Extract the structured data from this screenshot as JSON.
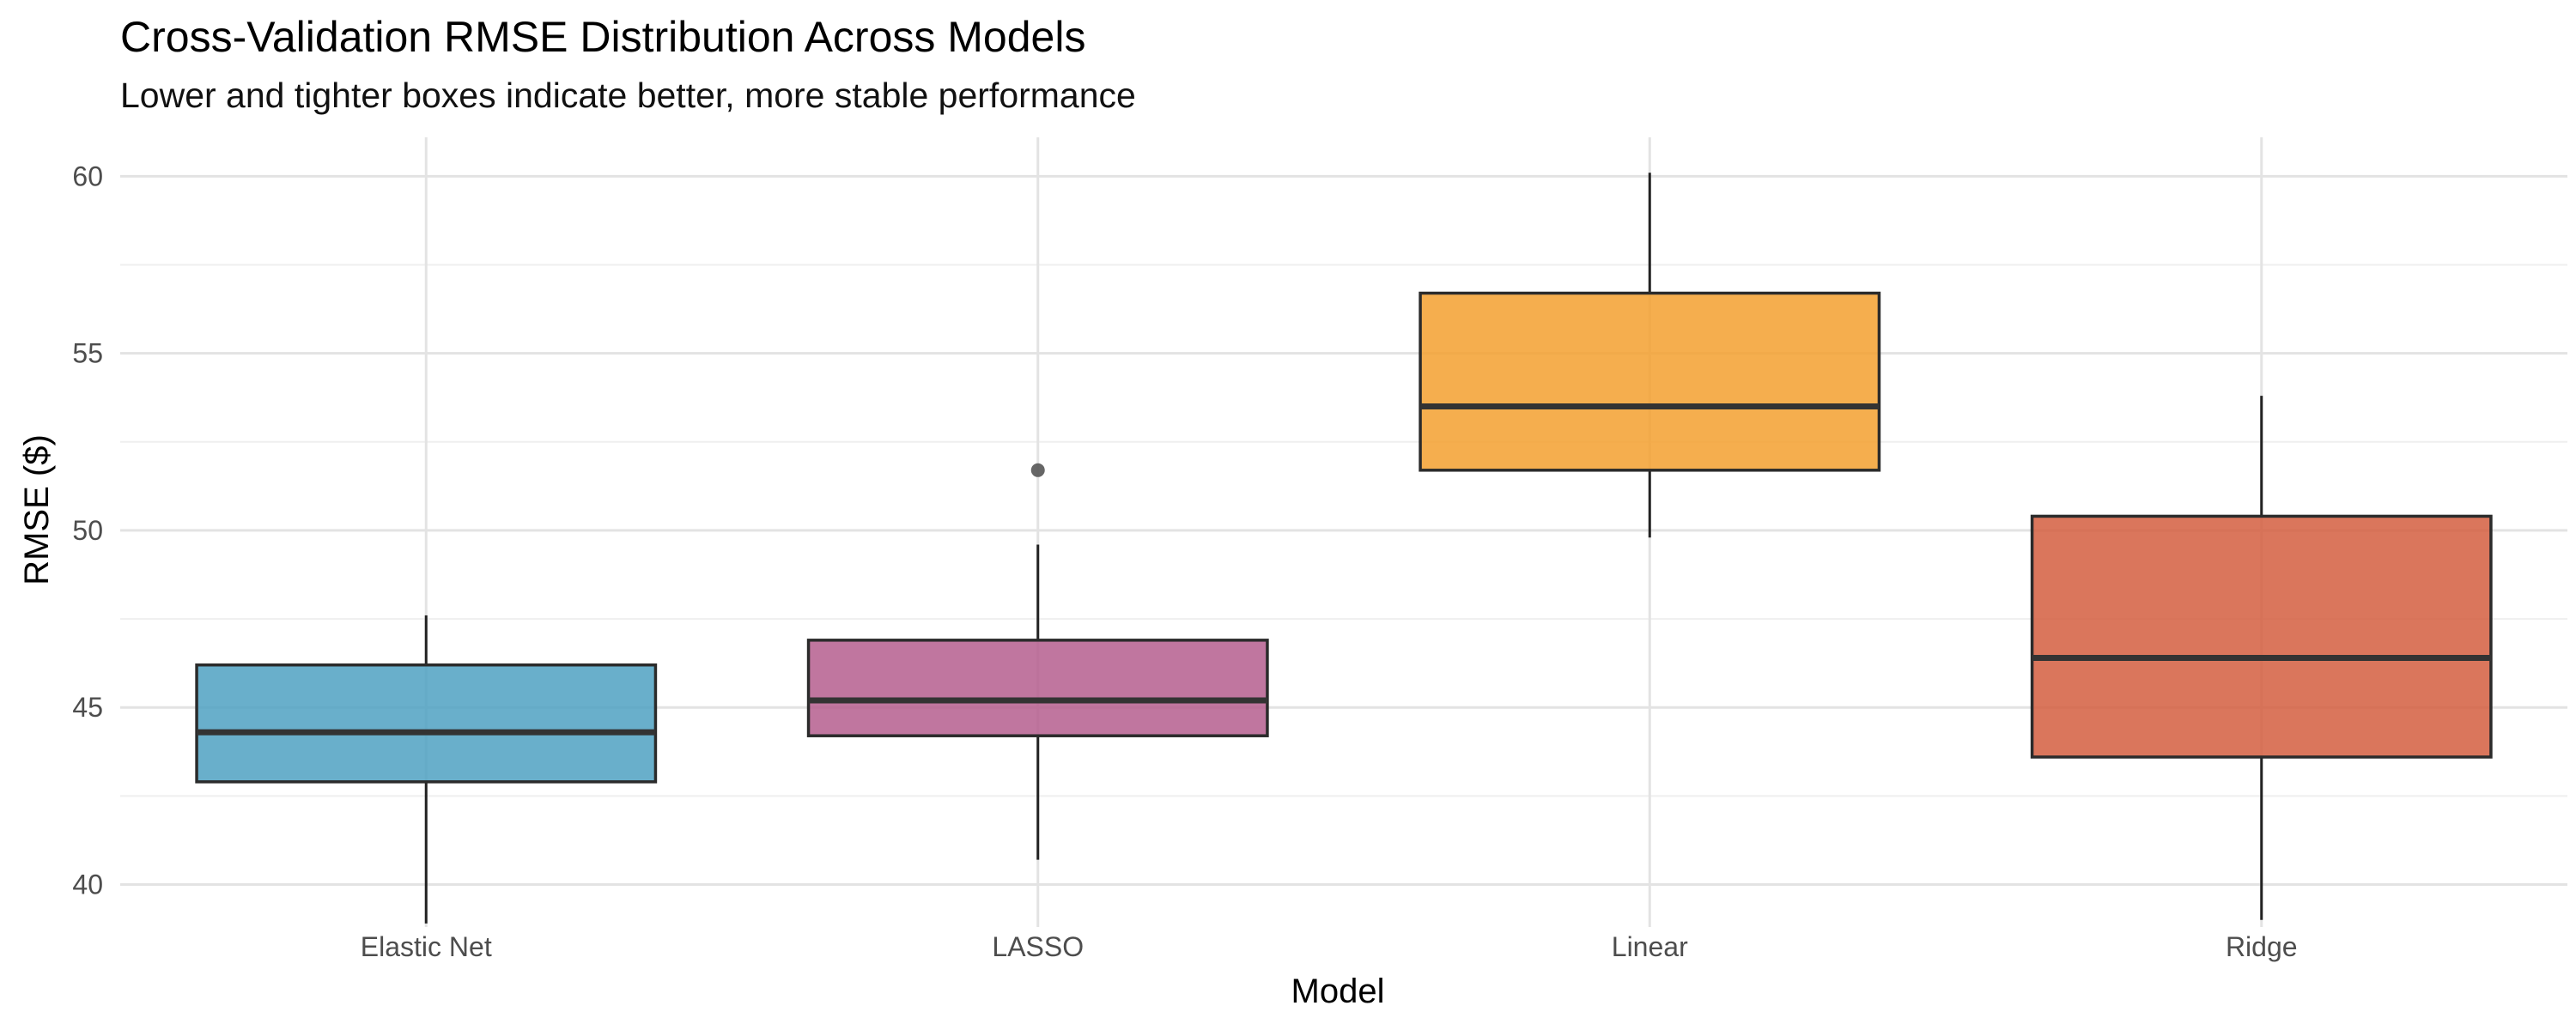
{
  "chart_data": {
    "type": "boxplot",
    "title": "Cross-Validation RMSE Distribution Across Models",
    "subtitle": "Lower and tighter boxes indicate better, more stable performance",
    "xlabel": "Model",
    "ylabel": "RMSE ($)",
    "ylim": [
      38.8,
      61.1
    ],
    "yticks": [
      40,
      45,
      50,
      55,
      60
    ],
    "grid": true,
    "legend": "none",
    "categories": [
      "Elastic Net",
      "LASSO",
      "Linear",
      "Ridge"
    ],
    "boxes": [
      {
        "category": "Elastic Net",
        "min": 38.9,
        "q1": 42.9,
        "median": 44.3,
        "q3": 46.2,
        "max": 47.6,
        "outliers": [],
        "color": "#4FA1C2"
      },
      {
        "category": "LASSO",
        "min": 40.7,
        "q1": 44.2,
        "median": 45.2,
        "q3": 46.9,
        "max": 49.6,
        "outliers": [
          51.7
        ],
        "color": "#B55E8E"
      },
      {
        "category": "Linear",
        "min": 49.8,
        "q1": 51.7,
        "median": 53.5,
        "q3": 56.7,
        "max": 60.1,
        "outliers": [],
        "color": "#F3A02F"
      },
      {
        "category": "Ridge",
        "min": 39.0,
        "q1": 43.6,
        "median": 46.4,
        "q3": 50.4,
        "max": 53.8,
        "outliers": [],
        "color": "#D45E40"
      }
    ]
  }
}
